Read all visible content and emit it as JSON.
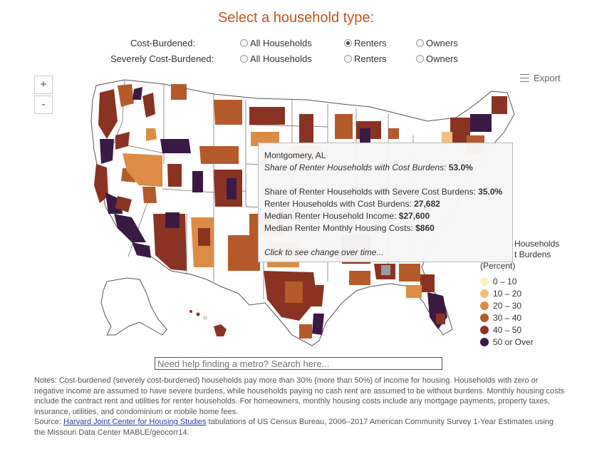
{
  "title": "Select a household type:",
  "cost_burdened": {
    "label": "Cost-Burdened:",
    "options": [
      "All Households",
      "Renters",
      "Owners"
    ],
    "selected": "Renters"
  },
  "severely_cost_burdened": {
    "label": "Severely Cost-Burdened:",
    "options": [
      "All Households",
      "Renters",
      "Owners"
    ],
    "selected": null
  },
  "zoom": {
    "in": "+",
    "out": "-"
  },
  "export_label": "Export",
  "tooltip": {
    "place": "Montgomery, AL",
    "share_label": "Share of Renter Households with Cost Burdens:",
    "share_value": "53.0%",
    "severe_label": "Share of Renter Households with Severe Cost Burdens:",
    "severe_value": "35.0%",
    "households_label": "Renter Households with Cost Burdens:",
    "households_value": "27,682",
    "income_label": "Median Renter Household Income:",
    "income_value": "$27,600",
    "costs_label": "Median Renter Monthly Housing Costs:",
    "costs_value": "$860",
    "link": "Click to see change over time..."
  },
  "legend": {
    "title_lines": [
      "Households",
      "t Burdens",
      "(Percent)"
    ],
    "items": [
      {
        "label": "0 – 10",
        "color": "#fdf0c2"
      },
      {
        "label": "10 – 20",
        "color": "#f2c07a"
      },
      {
        "label": "20 – 30",
        "color": "#dc8c45"
      },
      {
        "label": "30 – 40",
        "color": "#b55a2b"
      },
      {
        "label": "40 – 50",
        "color": "#8a3322"
      },
      {
        "label": "50 or Over",
        "color": "#3a1a45"
      }
    ]
  },
  "search_placeholder": "Need help finding a metro? Search here...",
  "notes": {
    "text": "Notes: Cost-burdened (severely cost-burdened) households pay more than 30% (more than 50%) of income for housing. Households with zero or negative income are assumed to have severe burdens, while households paying no cash rent are assumed to be without burdens. Monthly housing costs include the contract rent and utilities for renter households. For homeowners, monthly housing costs include any mortgage payments, property taxes, insurance, utilities, and condominium or mobile home fees.",
    "source_prefix": "Source: ",
    "source_link": "Harvard Joint Center for Housing Studies",
    "source_suffix": " tabulations of US Census Bureau, 2006–2017 American Community Survey 1-Year Estimates using the Missouri Data Center MABLE/geocorr14."
  }
}
